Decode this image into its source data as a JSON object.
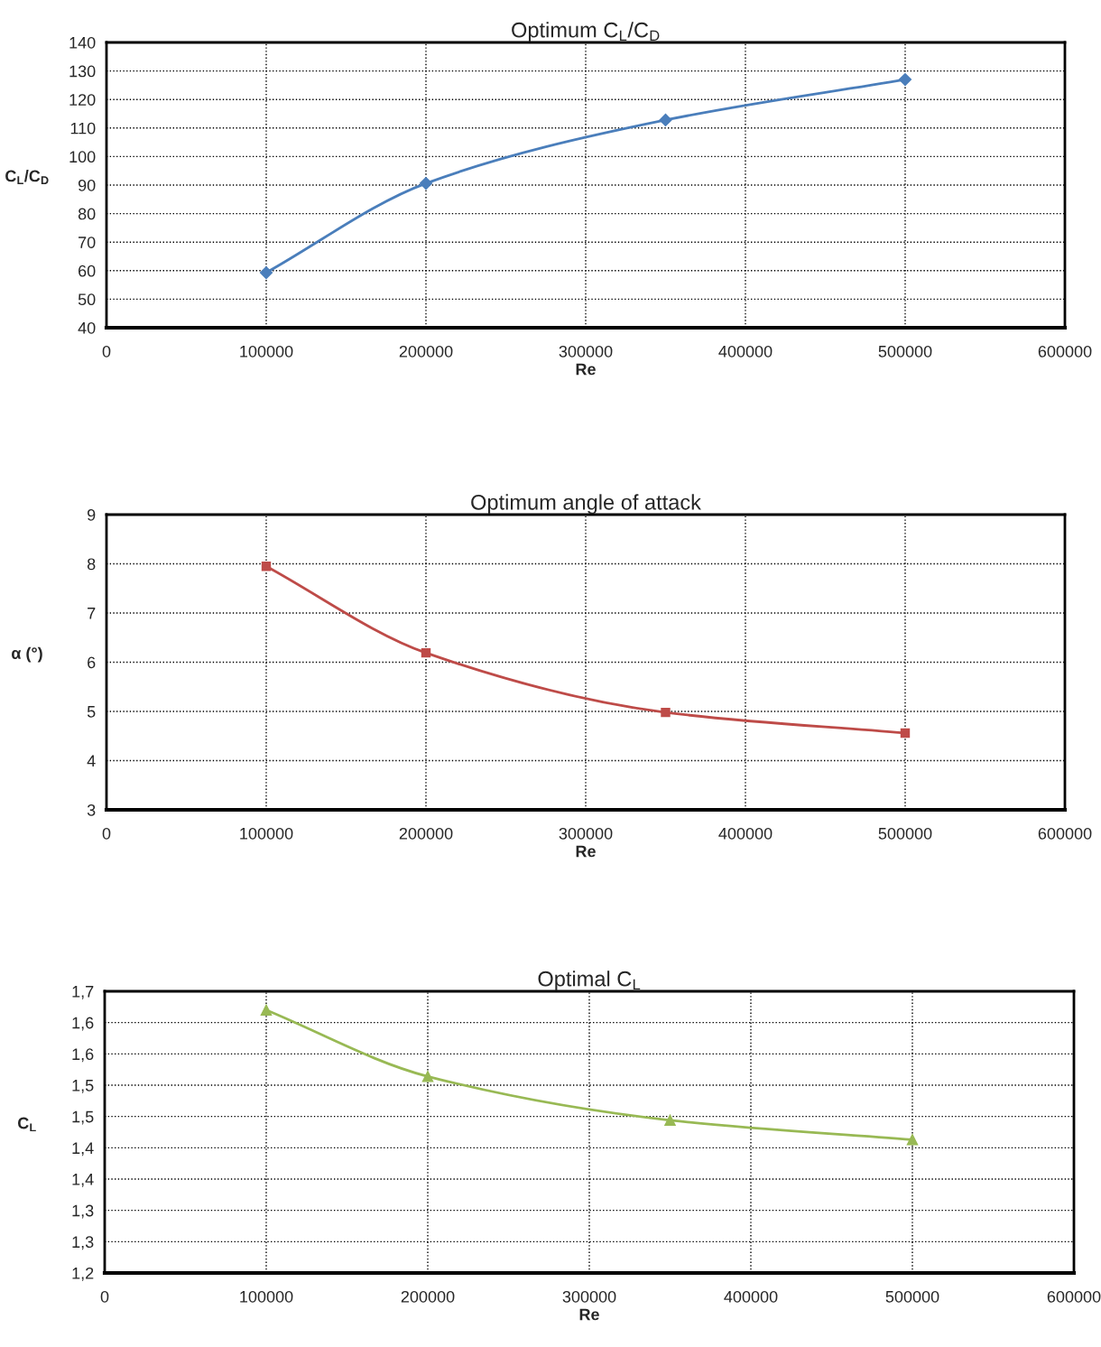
{
  "chart_data": [
    {
      "type": "line",
      "title": "Optimum C$_{L}$/C$_{D}$",
      "xlabel": "Re",
      "ylabel": "C$_{L}$/C$_{D}$",
      "x": [
        100000,
        200000,
        350000,
        500000
      ],
      "series": [
        {
          "color": "#4a7ebb",
          "marker": "diamond",
          "values": [
            59.3,
            90.6,
            112.8,
            127
          ]
        }
      ],
      "xlim": [
        0,
        600000
      ],
      "xticks": [
        0,
        100000,
        200000,
        300000,
        400000,
        500000,
        600000
      ],
      "ylim": [
        40,
        140
      ],
      "yticks": [
        40,
        50,
        60,
        70,
        80,
        90,
        100,
        110,
        120,
        130,
        140
      ],
      "grid": true,
      "legend": false
    },
    {
      "type": "line",
      "title": "Optimum angle of attack",
      "xlabel": "Re",
      "ylabel": "α (°)",
      "x": [
        100000,
        200000,
        350000,
        500000
      ],
      "series": [
        {
          "color": "#be4b48",
          "marker": "square",
          "values": [
            7.95,
            6.19,
            4.98,
            4.56
          ]
        }
      ],
      "xlim": [
        0,
        600000
      ],
      "xticks": [
        0,
        100000,
        200000,
        300000,
        400000,
        500000,
        600000
      ],
      "ylim": [
        3,
        9
      ],
      "yticks": [
        3,
        4,
        5,
        6,
        7,
        8,
        9
      ],
      "grid": true,
      "legend": false
    },
    {
      "type": "line",
      "title": "Optimal C$_{L}$",
      "xlabel": "Re",
      "ylabel": "C$_{L}$",
      "x": [
        100000,
        200000,
        350000,
        500000
      ],
      "series": [
        {
          "color": "#98b954",
          "marker": "triangle",
          "values": [
            1.62,
            1.514,
            1.444,
            1.413
          ]
        }
      ],
      "xlim": [
        0,
        600000
      ],
      "xticks": [
        0,
        100000,
        200000,
        300000,
        400000,
        500000,
        600000
      ],
      "ylim": [
        1.2,
        1.65
      ],
      "yticks": [
        {
          "value": 1.2,
          "label": "1,2"
        },
        {
          "value": 1.25,
          "label": "1,3"
        },
        {
          "value": 1.3,
          "label": "1,3"
        },
        {
          "value": 1.35,
          "label": "1,4"
        },
        {
          "value": 1.4,
          "label": "1,4"
        },
        {
          "value": 1.45,
          "label": "1,5"
        },
        {
          "value": 1.5,
          "label": "1,5"
        },
        {
          "value": 1.55,
          "label": "1,6"
        },
        {
          "value": 1.6,
          "label": "1,6"
        },
        {
          "value": 1.65,
          "label": "1,7"
        }
      ],
      "grid": true,
      "legend": false
    }
  ]
}
